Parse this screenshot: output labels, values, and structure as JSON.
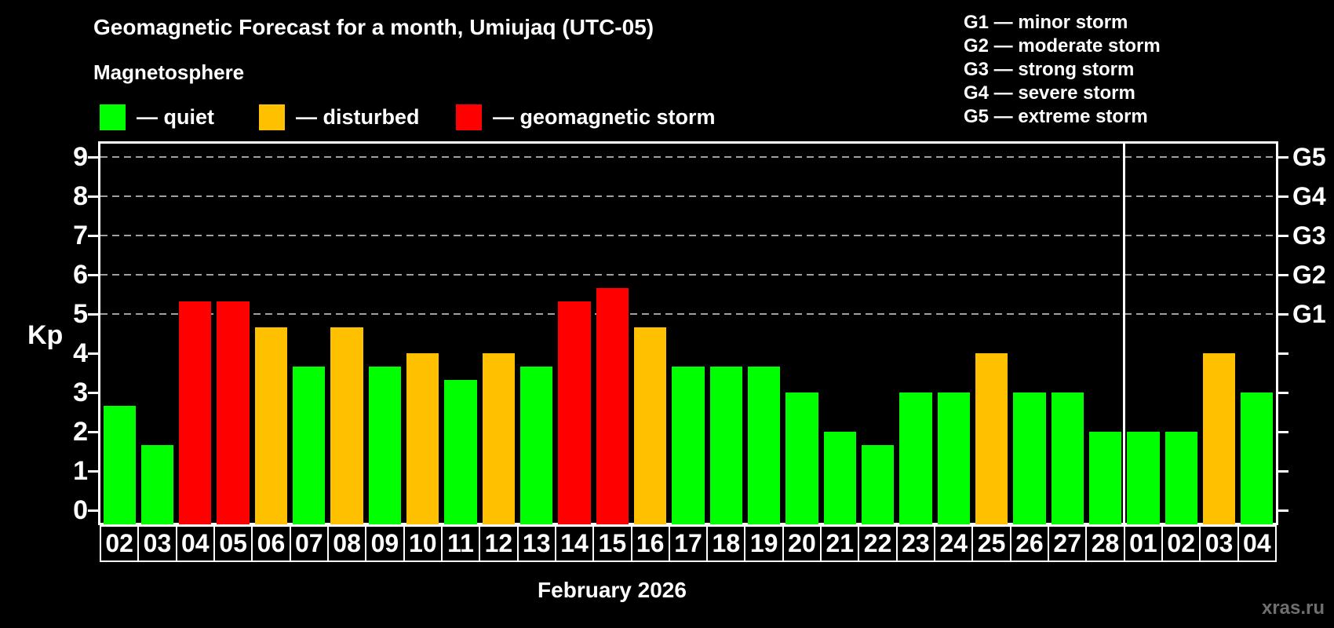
{
  "title": "Geomagnetic Forecast for a month, Umiujaq (UTC-05)",
  "subtitle": "Magnetosphere",
  "legend": {
    "items": [
      {
        "key": "quiet",
        "label": "— quiet",
        "color": "#00ff00"
      },
      {
        "key": "disturbed",
        "label": "— disturbed",
        "color": "#ffc000"
      },
      {
        "key": "storm",
        "label": "— geomagnetic storm",
        "color": "#ff0000"
      }
    ]
  },
  "g_legend": [
    "G1 — minor storm",
    "G2 — moderate storm",
    "G3 — strong storm",
    "G4 — severe storm",
    "G5 — extreme storm"
  ],
  "watermark": "xras.ru",
  "chart_data": {
    "type": "bar",
    "title": "Geomagnetic Forecast for a month, Umiujaq (UTC-05)",
    "subtitle": "Magnetosphere",
    "xlabel": "February 2026",
    "ylabel": "Kp",
    "ylim": [
      -0.33,
      9.34
    ],
    "yticks": [
      0,
      1,
      2,
      3,
      4,
      5,
      6,
      7,
      8,
      9
    ],
    "gridlines_at": [
      5,
      6,
      7,
      8,
      9
    ],
    "grid": "dashed-gray-on-storm-levels-only",
    "legend_position": "top",
    "right_axis": [
      {
        "kp": 5,
        "label": "G1"
      },
      {
        "kp": 6,
        "label": "G2"
      },
      {
        "kp": 7,
        "label": "G3"
      },
      {
        "kp": 8,
        "label": "G4"
      },
      {
        "kp": 9,
        "label": "G5"
      }
    ],
    "categories": [
      "02",
      "03",
      "04",
      "05",
      "06",
      "07",
      "08",
      "09",
      "10",
      "11",
      "12",
      "13",
      "14",
      "15",
      "16",
      "17",
      "18",
      "19",
      "20",
      "21",
      "22",
      "23",
      "24",
      "25",
      "26",
      "27",
      "28",
      "01",
      "02",
      "03",
      "04"
    ],
    "values": [
      2.67,
      1.67,
      5.33,
      5.33,
      4.67,
      3.67,
      4.67,
      3.67,
      4.0,
      3.33,
      4.0,
      3.67,
      5.33,
      5.67,
      4.67,
      3.67,
      3.67,
      3.67,
      3.0,
      2.0,
      1.67,
      3.0,
      3.0,
      4.0,
      3.0,
      3.0,
      2.0,
      2.0,
      2.0,
      4.0,
      3.0
    ],
    "statuses": [
      "quiet",
      "quiet",
      "storm",
      "storm",
      "disturbed",
      "quiet",
      "disturbed",
      "quiet",
      "disturbed",
      "quiet",
      "disturbed",
      "quiet",
      "storm",
      "storm",
      "disturbed",
      "quiet",
      "quiet",
      "quiet",
      "quiet",
      "quiet",
      "quiet",
      "quiet",
      "quiet",
      "disturbed",
      "quiet",
      "quiet",
      "quiet",
      "quiet",
      "quiet",
      "disturbed",
      "quiet"
    ],
    "colors": {
      "quiet": "#00ff00",
      "disturbed": "#ffc000",
      "storm": "#ff0000"
    },
    "month_separator_after_index": 26
  }
}
